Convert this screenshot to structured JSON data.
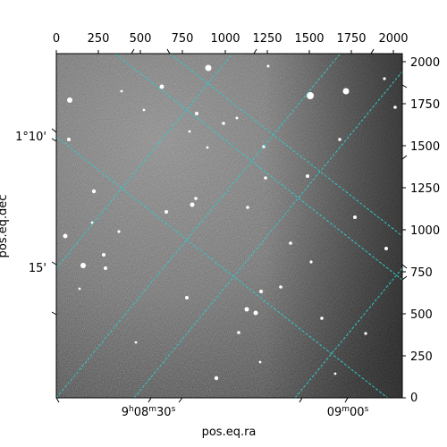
{
  "figure": {
    "image": "grayscale astronomical sky image with scattered stars",
    "grid_color": "#30c9c9",
    "pixel_axes": {
      "x_ticks": [
        "0",
        "250",
        "500",
        "750",
        "1000",
        "1250",
        "1500",
        "1750",
        "2000"
      ],
      "y_ticks": [
        "0",
        "250",
        "500",
        "750",
        "1000",
        "1250",
        "1500",
        "1750",
        "2000"
      ]
    },
    "world_axes": {
      "ra_label": "pos.eq.ra",
      "dec_label": "pos.eq.dec",
      "ra_ticks": [
        {
          "h": "9",
          "m": "08",
          "s": "30"
        },
        {
          "h": "09",
          "m": "00",
          "s": ""
        }
      ],
      "dec_ticks": [
        "1°10'",
        "15'"
      ]
    }
  }
}
